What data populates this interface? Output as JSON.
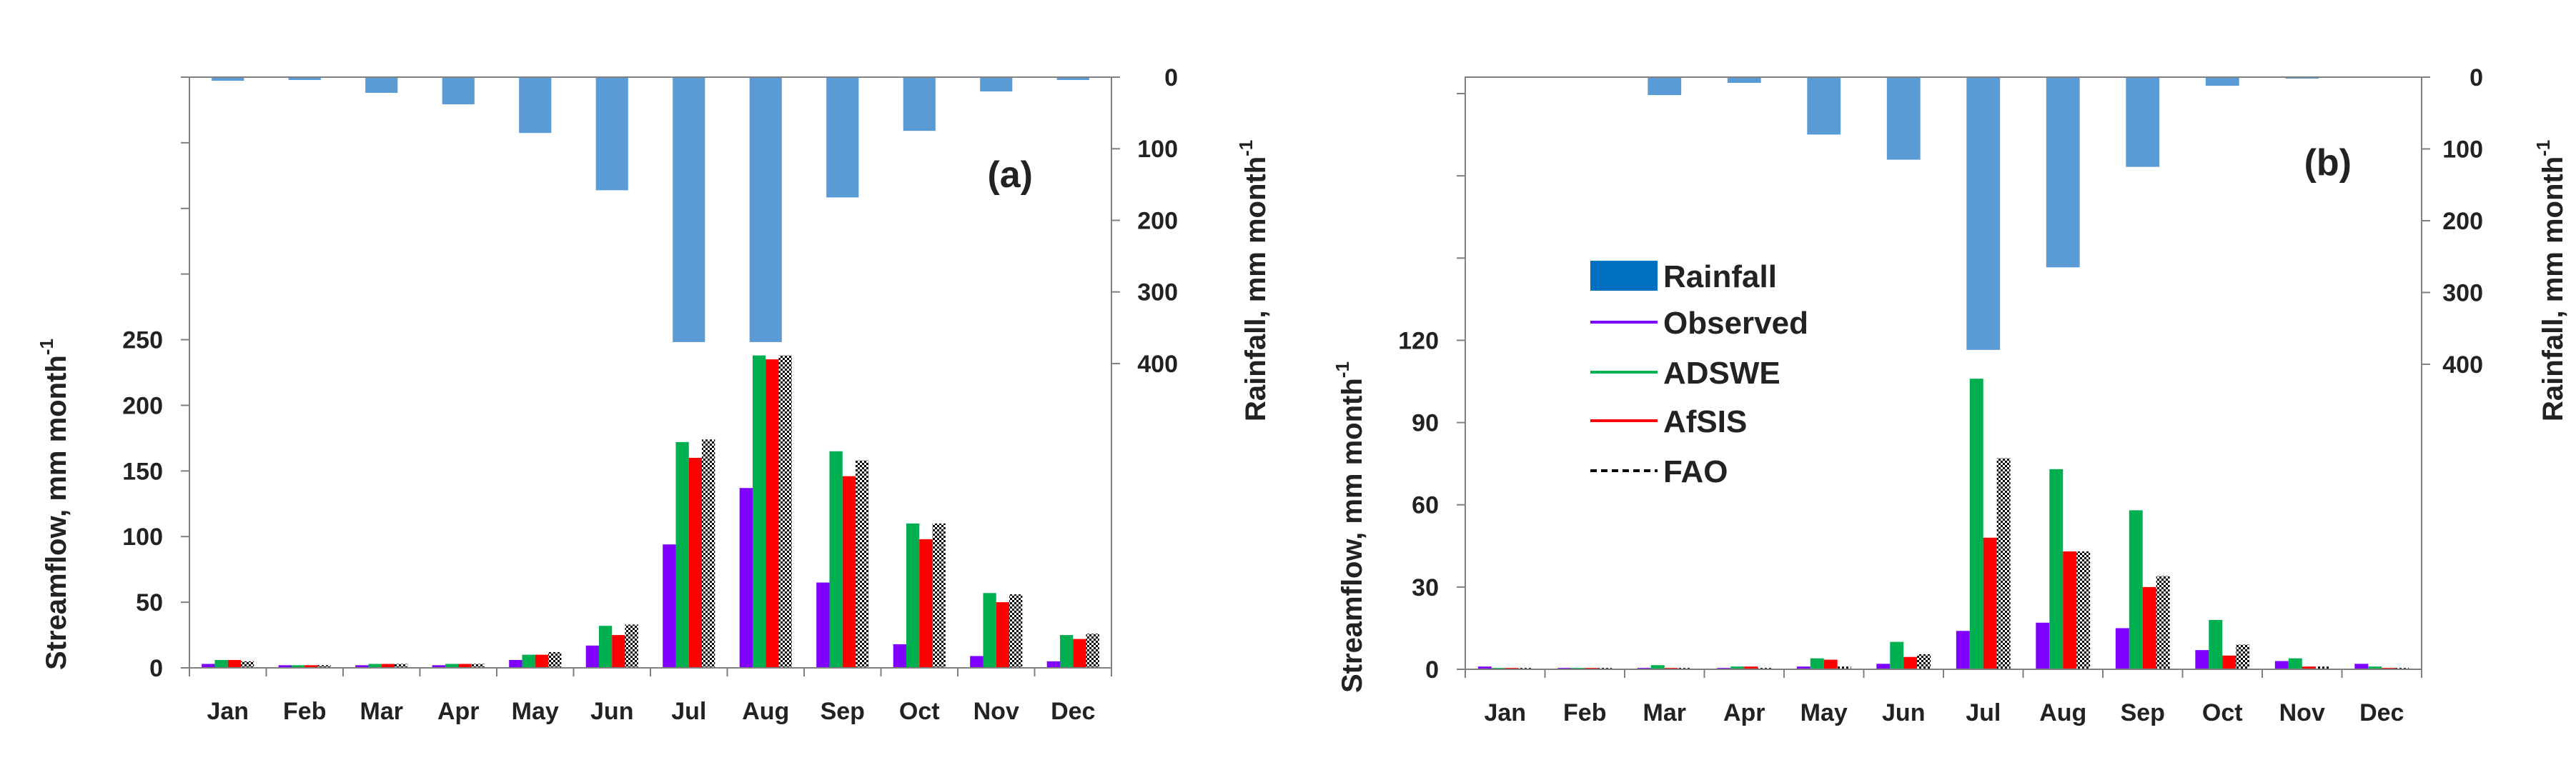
{
  "colors": {
    "rainfall": "#5b9bd5",
    "rainfall_legend": "#0070c0",
    "observed": "#7f00ff",
    "adswe": "#00b050",
    "afsis": "#ff0000",
    "fao": "#000000",
    "axis": "#808080"
  },
  "legend": {
    "items": [
      {
        "key": "rainfall",
        "label": "Rainfall"
      },
      {
        "key": "observed",
        "label": "Observed"
      },
      {
        "key": "adswe",
        "label": "ADSWE"
      },
      {
        "key": "afsis",
        "label": "AfSIS"
      },
      {
        "key": "fao",
        "label": "FAO"
      }
    ]
  },
  "chart_data": [
    {
      "type": "bar",
      "panel_label": "(a)",
      "categories": [
        "Jan",
        "Feb",
        "Mar",
        "Apr",
        "May",
        "Jun",
        "Jul",
        "Aug",
        "Sep",
        "Oct",
        "Nov",
        "Dec"
      ],
      "ylabel_left": "Streamflow, mm month",
      "ylabel_left_sup": "-1",
      "ylabel_right": "Rainfall, mm month",
      "ylabel_right_sup": "-1",
      "streamflow_ticks": [
        0,
        50,
        100,
        150,
        200,
        250
      ],
      "streamflow_tick_labels": [
        "0",
        "50",
        "100",
        "150",
        "200",
        "250"
      ],
      "streamflow_ylim": [
        0,
        450
      ],
      "rainfall_ticks": [
        0,
        100,
        200,
        300,
        400
      ],
      "rainfall_tick_labels": [
        "0",
        "100",
        "200",
        "300",
        "400"
      ],
      "rainfall_ylim": [
        0,
        825
      ],
      "rainfall": [
        5,
        4,
        22,
        38,
        78,
        158,
        370,
        370,
        168,
        75,
        20,
        4
      ],
      "series": [
        {
          "name": "Observed",
          "key": "observed",
          "values": [
            3,
            2,
            2,
            2,
            6,
            17,
            94,
            137,
            65,
            18,
            9,
            5
          ]
        },
        {
          "name": "ADSWE",
          "key": "adswe",
          "values": [
            6,
            2,
            3,
            3,
            10,
            32,
            172,
            238,
            165,
            110,
            57,
            25
          ]
        },
        {
          "name": "AfSIS",
          "key": "afsis",
          "values": [
            6,
            2,
            3,
            3,
            10,
            25,
            160,
            235,
            146,
            98,
            50,
            22
          ]
        },
        {
          "name": "FAO",
          "key": "fao",
          "values": [
            5,
            2,
            3,
            3,
            12,
            33,
            174,
            238,
            158,
            110,
            56,
            26
          ]
        }
      ]
    },
    {
      "type": "bar",
      "panel_label": "(b)",
      "categories": [
        "Jan",
        "Feb",
        "Mar",
        "Apr",
        "May",
        "Jun",
        "Jul",
        "Aug",
        "Sep",
        "Oct",
        "Nov",
        "Dec"
      ],
      "ylabel_left": "Streamflow, mm month",
      "ylabel_left_sup": "-1",
      "ylabel_right": "Rainfall, mm month",
      "ylabel_right_sup": "-1",
      "streamflow_ticks": [
        0,
        30,
        60,
        90,
        120
      ],
      "streamflow_tick_labels": [
        "0",
        "30",
        "60",
        "90",
        "120"
      ],
      "streamflow_ylim": [
        0,
        216
      ],
      "rainfall_ticks": [
        0,
        100,
        200,
        300,
        400
      ],
      "rainfall_tick_labels": [
        "0",
        "100",
        "200",
        "300",
        "400"
      ],
      "rainfall_ylim": [
        0,
        825
      ],
      "rainfall": [
        0,
        0,
        25,
        8,
        80,
        115,
        380,
        265,
        125,
        12,
        2,
        0
      ],
      "series": [
        {
          "name": "Observed",
          "key": "observed",
          "values": [
            1,
            0.5,
            0.5,
            0.5,
            1,
            2,
            14,
            17,
            15,
            7,
            3,
            2
          ]
        },
        {
          "name": "ADSWE",
          "key": "adswe",
          "values": [
            0.5,
            0.5,
            1.5,
            1,
            4,
            10,
            106,
            73,
            58,
            18,
            4,
            1
          ]
        },
        {
          "name": "AfSIS",
          "key": "afsis",
          "values": [
            0.5,
            0.5,
            0.5,
            1,
            3.5,
            4.5,
            48,
            43,
            30,
            5,
            1,
            0.5
          ]
        },
        {
          "name": "FAO",
          "key": "fao",
          "values": [
            0.5,
            0.5,
            0.5,
            0.5,
            1,
            5.5,
            77,
            43,
            34,
            9,
            1,
            0.5
          ]
        }
      ]
    }
  ]
}
